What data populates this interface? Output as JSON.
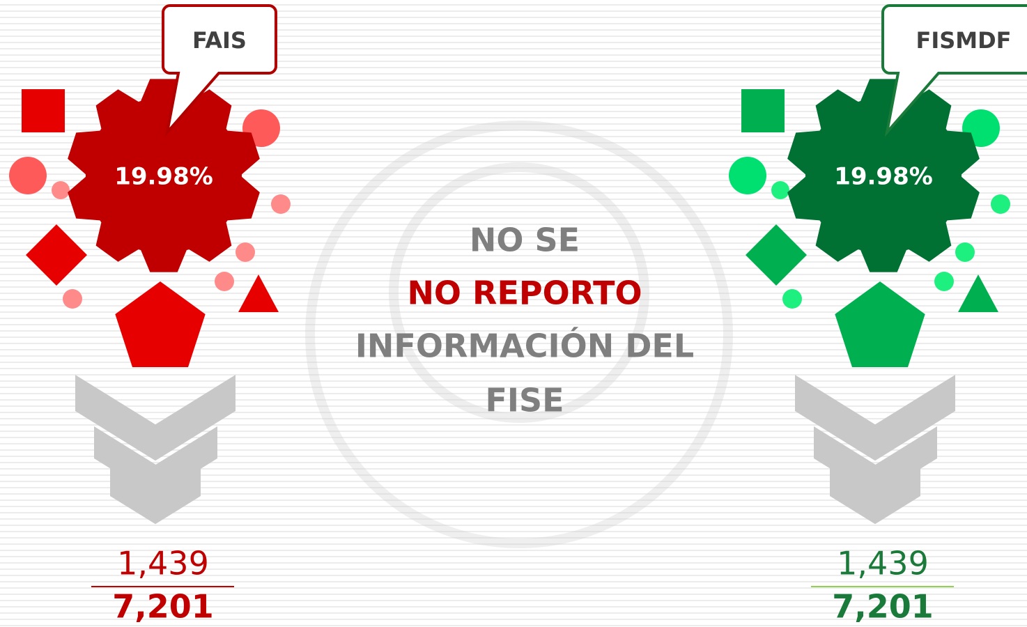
{
  "panels": [
    {
      "label": "FAIS",
      "percent": "19.98%",
      "numerator": "1,439",
      "denominator": "7,201"
    },
    {
      "label": "FISMDF",
      "percent": "19.98%",
      "numerator": "1,439",
      "denominator": "7,201"
    }
  ],
  "message": {
    "lines": [
      "NO SE",
      "NO REPORTO",
      "INFORMACIÓN DEL",
      "FISE"
    ]
  }
}
